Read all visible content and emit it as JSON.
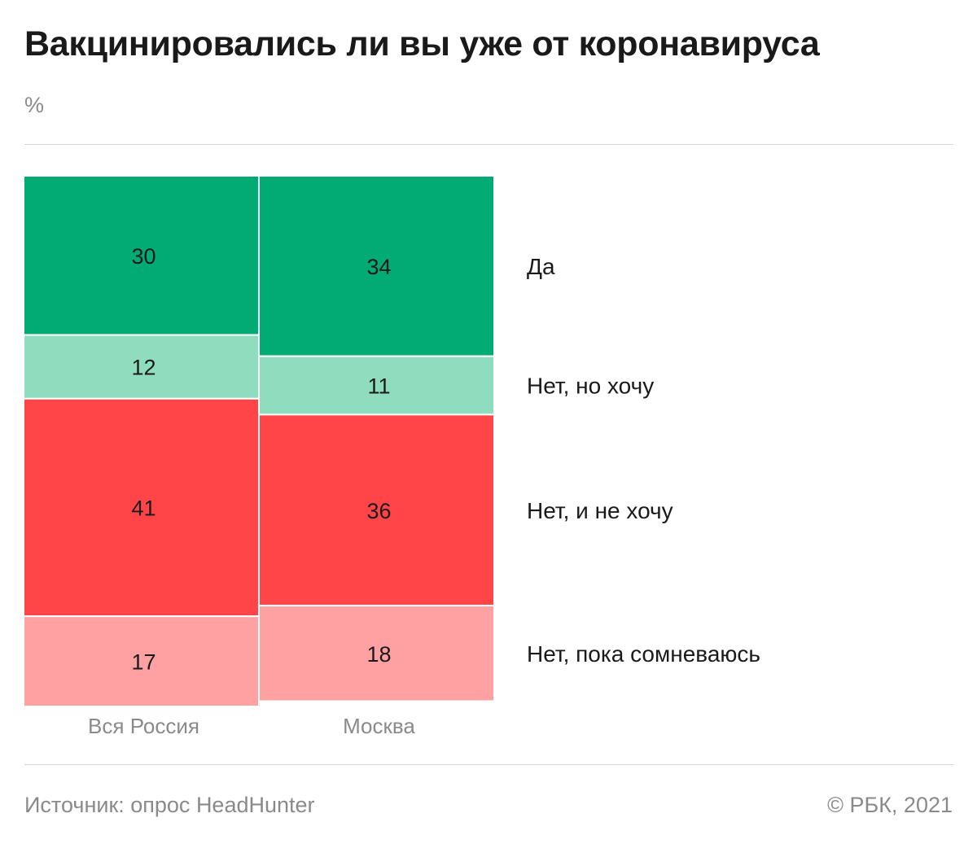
{
  "header": {
    "title": "Вакцинировались ли вы уже от коронавируса",
    "unit": "%"
  },
  "footer": {
    "source": "Источник: опрос HeadHunter",
    "copyright": "© РБК, 2021"
  },
  "chart_data": {
    "type": "bar",
    "subtype": "stacked-100",
    "title": "Вакцинировались ли вы уже от коронавируса",
    "ylabel": "%",
    "xlabel": "",
    "ylim": [
      0,
      100
    ],
    "categories": [
      "Вся Россия",
      "Москва"
    ],
    "series": [
      {
        "name": "Да",
        "values": [
          30,
          34
        ],
        "color": "#02ab74"
      },
      {
        "name": "Нет, но хочу",
        "values": [
          12,
          11
        ],
        "color": "#90dcbf"
      },
      {
        "name": "Нет, и не хочу",
        "values": [
          41,
          36
        ],
        "color": "#ff4547"
      },
      {
        "name": "Нет, пока сомневаюсь",
        "values": [
          17,
          18
        ],
        "color": "#ffa1a2"
      }
    ],
    "legend_placement": "right"
  }
}
